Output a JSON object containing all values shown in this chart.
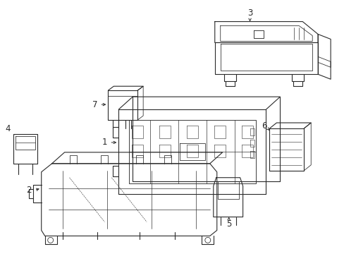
{
  "background_color": "#ffffff",
  "line_color": "#2a2a2a",
  "line_width": 0.8,
  "fig_width": 4.89,
  "fig_height": 3.6,
  "dpi": 100
}
